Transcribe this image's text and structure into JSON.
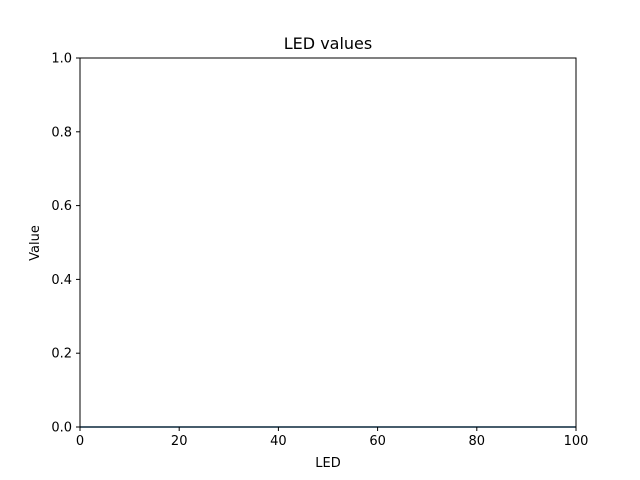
{
  "chart_data": {
    "type": "line",
    "title": "LED values",
    "xlabel": "LED",
    "ylabel": "Value",
    "xlim": [
      0,
      100
    ],
    "ylim": [
      0,
      1.0
    ],
    "x_ticks": [
      0,
      20,
      40,
      60,
      80,
      100
    ],
    "x_tick_labels": [
      "0",
      "20",
      "40",
      "60",
      "80",
      "100"
    ],
    "y_ticks": [
      0,
      0.2,
      0.4,
      0.6,
      0.8,
      1.0
    ],
    "y_tick_labels": [
      "0.0",
      "0.2",
      "0.4",
      "0.6",
      "0.8",
      "1.0"
    ],
    "grid": false,
    "series": [
      {
        "x": [
          0,
          100
        ],
        "values": [
          0,
          0
        ],
        "color": "#1f77b4"
      }
    ]
  }
}
